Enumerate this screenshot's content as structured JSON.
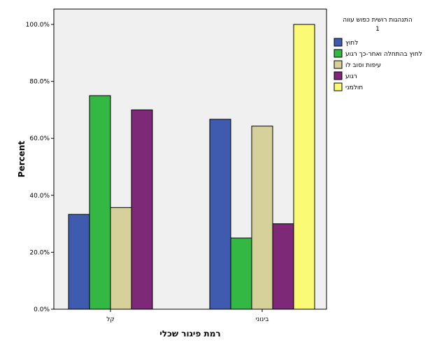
{
  "chart_data": {
    "type": "bar",
    "xlabel": "רמת פיגור שכלי",
    "ylabel": "Percent",
    "ylim": [
      0,
      100
    ],
    "yticks": [
      "0.0%",
      "20.0%",
      "40.0%",
      "60.0%",
      "80.0%",
      "100.0%"
    ],
    "grid": false,
    "legend_position": "right",
    "legend_title": [
      "התנהגות רושית כפוש עווה",
      "1"
    ],
    "categories": [
      "קל",
      "בינוני"
    ],
    "series": [
      {
        "name": "לחוץ",
        "color": "#3f5bb0",
        "values": [
          33.3,
          66.7
        ]
      },
      {
        "name": "לחוץ בהתחלה ואחר-כך רגוע",
        "color": "#33b843",
        "values": [
          75.0,
          25.0
        ]
      },
      {
        "name": "עיפות וסוב לו",
        "color": "#d6d09a",
        "values": [
          35.7,
          64.3
        ]
      },
      {
        "name": "רגוע",
        "color": "#7e2878",
        "values": [
          70.0,
          30.0
        ]
      },
      {
        "name": "חולמני",
        "color": "#fbfa75",
        "values": [
          0,
          100.0
        ]
      }
    ]
  }
}
